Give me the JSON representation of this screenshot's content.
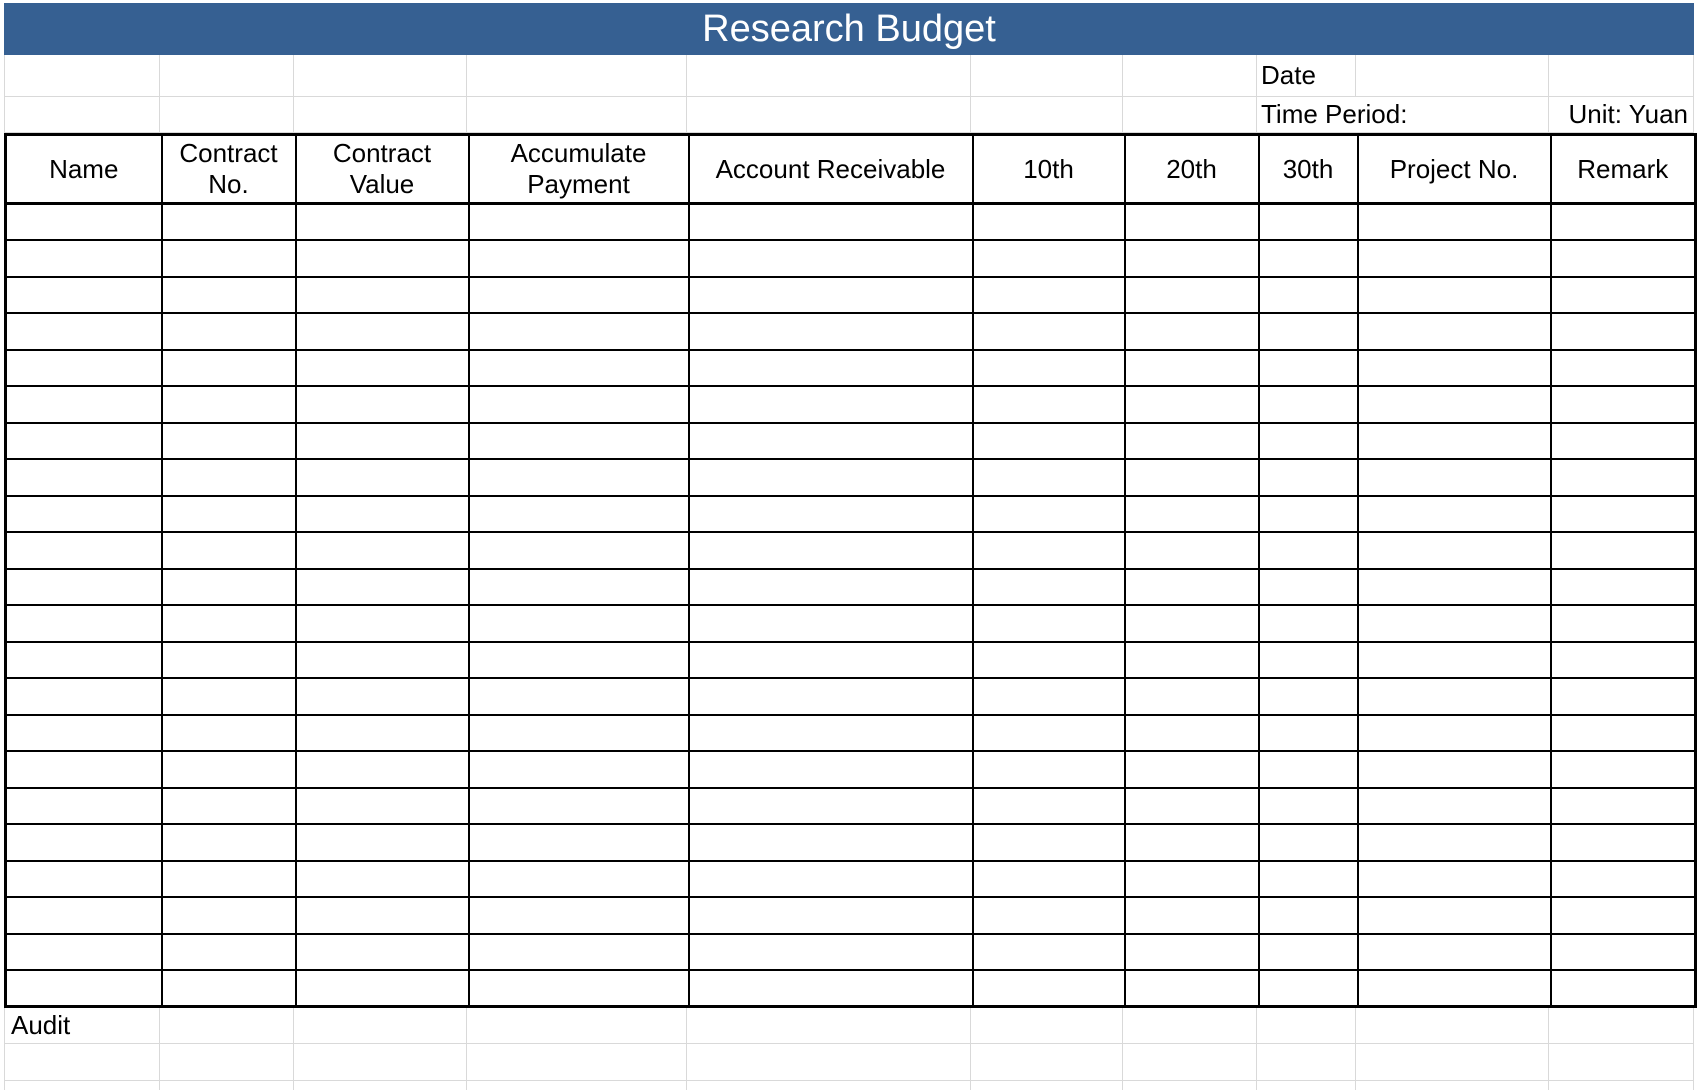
{
  "title": "Research Budget",
  "header_info": {
    "date_label": "Date",
    "time_period_label": "Time Period:",
    "unit_label": "Unit: Yuan"
  },
  "table": {
    "columns": [
      "Name",
      "Contract No.",
      "Contract Value",
      "Accumulate Payment",
      "Account Receivable",
      "10th",
      "20th",
      "30th",
      "Project No.",
      "Remark"
    ],
    "empty_row_count": 22
  },
  "footer": {
    "audit_label": "Audit"
  },
  "colors": {
    "title_bar_bg": "#366092",
    "title_text": "#FFFFFF",
    "table_border": "#000000",
    "grid_line": "#D9D9D9",
    "background": "#FFFFFF"
  }
}
